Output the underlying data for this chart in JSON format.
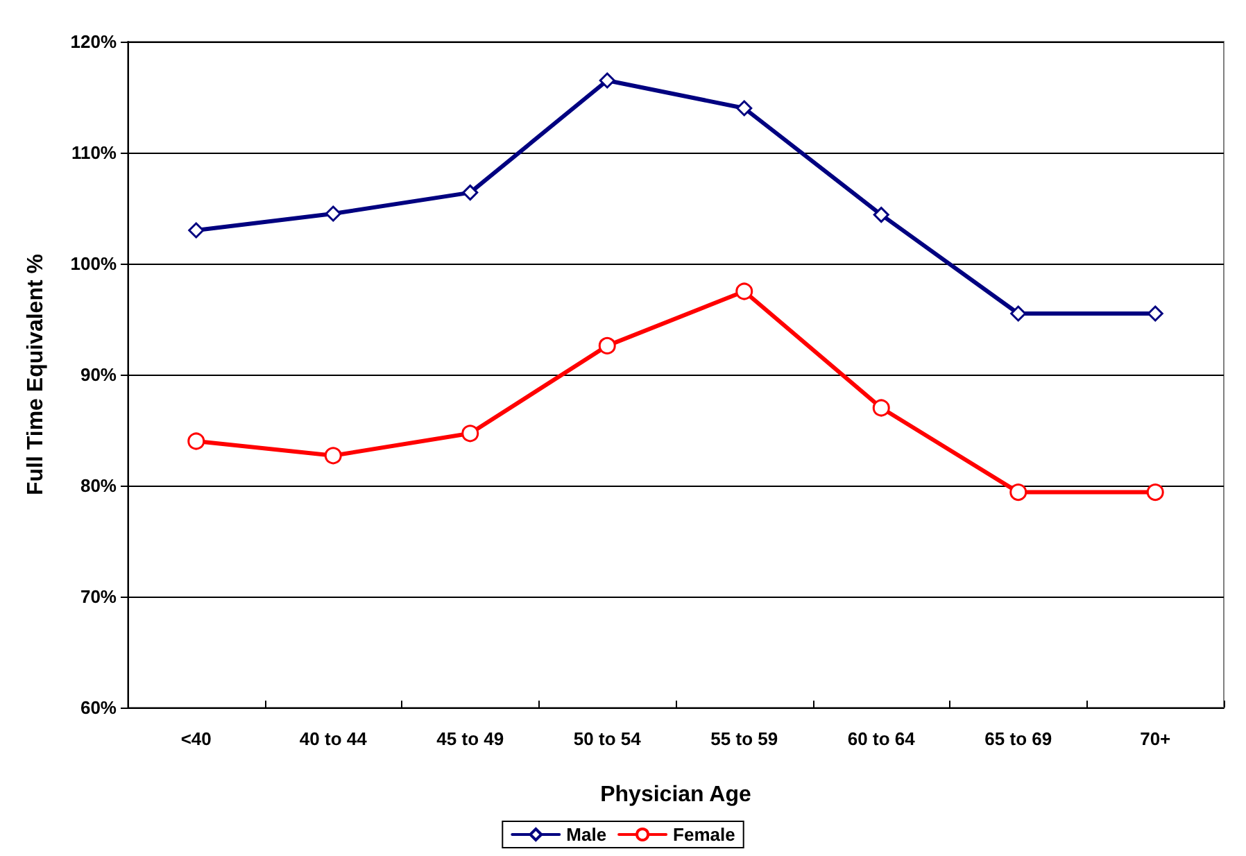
{
  "chart_data": {
    "type": "line",
    "xlabel": "Physician Age",
    "ylabel": "Full Time Equivalent %",
    "categories": [
      "<40",
      "40 to 44",
      "45 to 49",
      "50 to 54",
      "55 to 59",
      "60 to 64",
      "65 to 69",
      "70+"
    ],
    "series": [
      {
        "name": "Male",
        "color": "#000080",
        "marker": "diamond",
        "values": [
          103,
          104.5,
          106.4,
          116.5,
          114,
          104.4,
          95.5,
          95.5
        ]
      },
      {
        "name": "Female",
        "color": "#ff0000",
        "marker": "circle",
        "values": [
          84,
          82.7,
          84.7,
          92.6,
          97.5,
          87,
          79.4,
          79.4
        ]
      }
    ],
    "ylim": [
      60,
      120
    ],
    "yticks": [
      {
        "value": 60,
        "label": "60%"
      },
      {
        "value": 70,
        "label": "70%"
      },
      {
        "value": 80,
        "label": "80%"
      },
      {
        "value": 90,
        "label": "90%"
      },
      {
        "value": 100,
        "label": "100%"
      },
      {
        "value": 110,
        "label": "110%"
      },
      {
        "value": 120,
        "label": "120%"
      }
    ],
    "grid": "y",
    "legend": "bottom",
    "line_style": "solid"
  }
}
